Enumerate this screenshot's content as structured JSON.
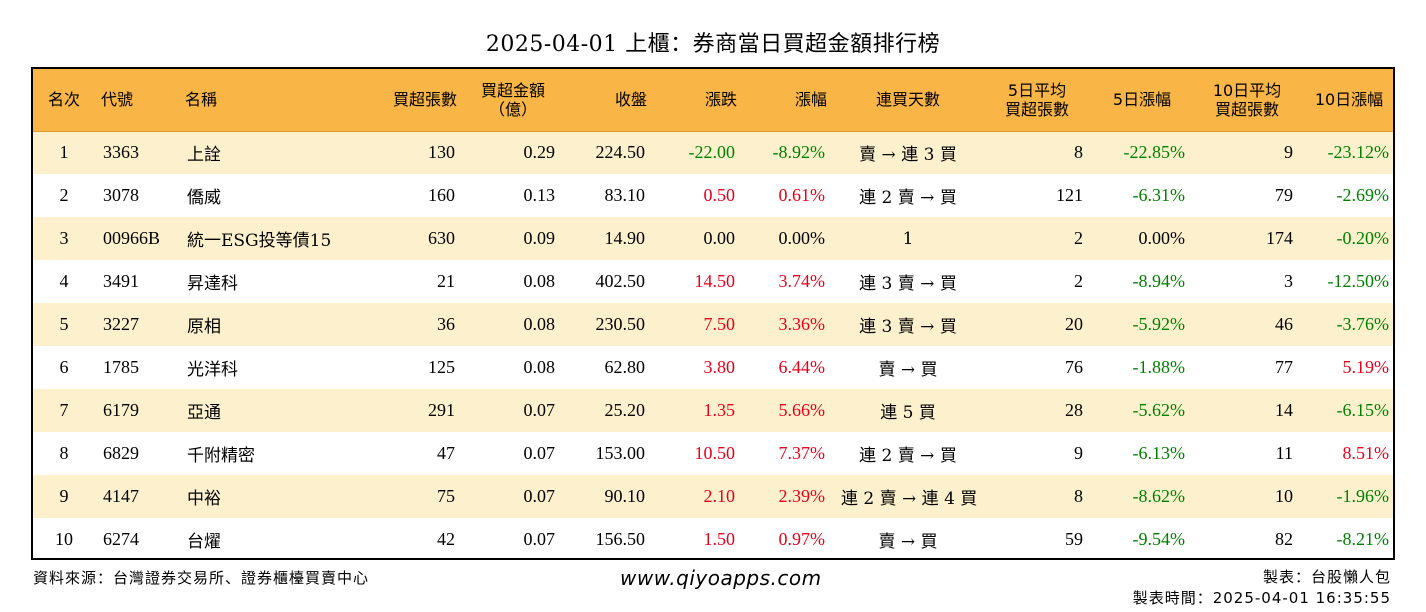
{
  "title": "2025-04-01 上櫃：券商當日買超金額排行榜",
  "columns": [
    {
      "label": "名次",
      "label2": ""
    },
    {
      "label": "代號",
      "label2": ""
    },
    {
      "label": "名稱",
      "label2": ""
    },
    {
      "label": "買超張數",
      "label2": ""
    },
    {
      "label": "買超金額",
      "label2": "（億）"
    },
    {
      "label": "收盤",
      "label2": ""
    },
    {
      "label": "漲跌",
      "label2": ""
    },
    {
      "label": "漲幅",
      "label2": ""
    },
    {
      "label": "連買天數",
      "label2": ""
    },
    {
      "label": "5日平均",
      "label2": "買超張數"
    },
    {
      "label": "5日漲幅",
      "label2": ""
    },
    {
      "label": "10日平均",
      "label2": "買超張數"
    },
    {
      "label": "10日漲幅",
      "label2": ""
    }
  ],
  "rows": [
    {
      "rank": "1",
      "code": "3363",
      "name": "上詮",
      "buy_lots": "130",
      "buy_amount": "0.29",
      "close": "224.50",
      "change": "-22.00",
      "change_color": "#008000",
      "pct": "-8.92%",
      "pct_color": "#008000",
      "streak": "賣 → 連 3 買",
      "avg5": "8",
      "pct5": "-22.85%",
      "pct5_color": "#008000",
      "avg10": "9",
      "pct10": "-23.12%",
      "pct10_color": "#008000"
    },
    {
      "rank": "2",
      "code": "3078",
      "name": "僑威",
      "buy_lots": "160",
      "buy_amount": "0.13",
      "close": "83.10",
      "change": "0.50",
      "change_color": "#e8001b",
      "pct": "0.61%",
      "pct_color": "#e8001b",
      "streak": "連 2 賣 → 買",
      "avg5": "121",
      "pct5": "-6.31%",
      "pct5_color": "#008000",
      "avg10": "79",
      "pct10": "-2.69%",
      "pct10_color": "#008000"
    },
    {
      "rank": "3",
      "code": "00966B",
      "name": "統一ESG投等債15",
      "buy_lots": "630",
      "buy_amount": "0.09",
      "close": "14.90",
      "change": "0.00",
      "change_color": "#000000",
      "pct": "0.00%",
      "pct_color": "#000000",
      "streak": "1",
      "avg5": "2",
      "pct5": "0.00%",
      "pct5_color": "#000000",
      "avg10": "174",
      "pct10": "-0.20%",
      "pct10_color": "#008000"
    },
    {
      "rank": "4",
      "code": "3491",
      "name": "昇達科",
      "buy_lots": "21",
      "buy_amount": "0.08",
      "close": "402.50",
      "change": "14.50",
      "change_color": "#e8001b",
      "pct": "3.74%",
      "pct_color": "#e8001b",
      "streak": "連 3 賣 → 買",
      "avg5": "2",
      "pct5": "-8.94%",
      "pct5_color": "#008000",
      "avg10": "3",
      "pct10": "-12.50%",
      "pct10_color": "#008000"
    },
    {
      "rank": "5",
      "code": "3227",
      "name": "原相",
      "buy_lots": "36",
      "buy_amount": "0.08",
      "close": "230.50",
      "change": "7.50",
      "change_color": "#e8001b",
      "pct": "3.36%",
      "pct_color": "#e8001b",
      "streak": "連 3 賣 → 買",
      "avg5": "20",
      "pct5": "-5.92%",
      "pct5_color": "#008000",
      "avg10": "46",
      "pct10": "-3.76%",
      "pct10_color": "#008000"
    },
    {
      "rank": "6",
      "code": "1785",
      "name": "光洋科",
      "buy_lots": "125",
      "buy_amount": "0.08",
      "close": "62.80",
      "change": "3.80",
      "change_color": "#e8001b",
      "pct": "6.44%",
      "pct_color": "#e8001b",
      "streak": "賣 → 買",
      "avg5": "76",
      "pct5": "-1.88%",
      "pct5_color": "#008000",
      "avg10": "77",
      "pct10": "5.19%",
      "pct10_color": "#e8001b"
    },
    {
      "rank": "7",
      "code": "6179",
      "name": "亞通",
      "buy_lots": "291",
      "buy_amount": "0.07",
      "close": "25.20",
      "change": "1.35",
      "change_color": "#e8001b",
      "pct": "5.66%",
      "pct_color": "#e8001b",
      "streak": "連 5 買",
      "avg5": "28",
      "pct5": "-5.62%",
      "pct5_color": "#008000",
      "avg10": "14",
      "pct10": "-6.15%",
      "pct10_color": "#008000"
    },
    {
      "rank": "8",
      "code": "6829",
      "name": "千附精密",
      "buy_lots": "47",
      "buy_amount": "0.07",
      "close": "153.00",
      "change": "10.50",
      "change_color": "#e8001b",
      "pct": "7.37%",
      "pct_color": "#e8001b",
      "streak": "連 2 賣 → 買",
      "avg5": "9",
      "pct5": "-6.13%",
      "pct5_color": "#008000",
      "avg10": "11",
      "pct10": "8.51%",
      "pct10_color": "#e8001b"
    },
    {
      "rank": "9",
      "code": "4147",
      "name": "中裕",
      "buy_lots": "75",
      "buy_amount": "0.07",
      "close": "90.10",
      "change": "2.10",
      "change_color": "#e8001b",
      "pct": "2.39%",
      "pct_color": "#e8001b",
      "streak": "連 2 賣 → 連 4 買",
      "avg5": "8",
      "pct5": "-8.62%",
      "pct5_color": "#008000",
      "avg10": "10",
      "pct10": "-1.96%",
      "pct10_color": "#008000"
    },
    {
      "rank": "10",
      "code": "6274",
      "name": "台燿",
      "buy_lots": "42",
      "buy_amount": "0.07",
      "close": "156.50",
      "change": "1.50",
      "change_color": "#e8001b",
      "pct": "0.97%",
      "pct_color": "#e8001b",
      "streak": "賣 → 買",
      "avg5": "59",
      "pct5": "-9.54%",
      "pct5_color": "#008000",
      "avg10": "82",
      "pct10": "-8.21%",
      "pct10_color": "#008000"
    }
  ],
  "footer": {
    "source": "資料來源：台灣證券交易所、證券櫃檯買賣中心",
    "website": "www.qiyoapps.com",
    "maker": "製表：台股懶人包",
    "made_time": "製表時間：2025-04-01 16:35:55"
  },
  "colors": {
    "header_bg": "#f9b545",
    "stripe_bg": "#fdf1cd",
    "up": "#e8001b",
    "down": "#008000"
  }
}
